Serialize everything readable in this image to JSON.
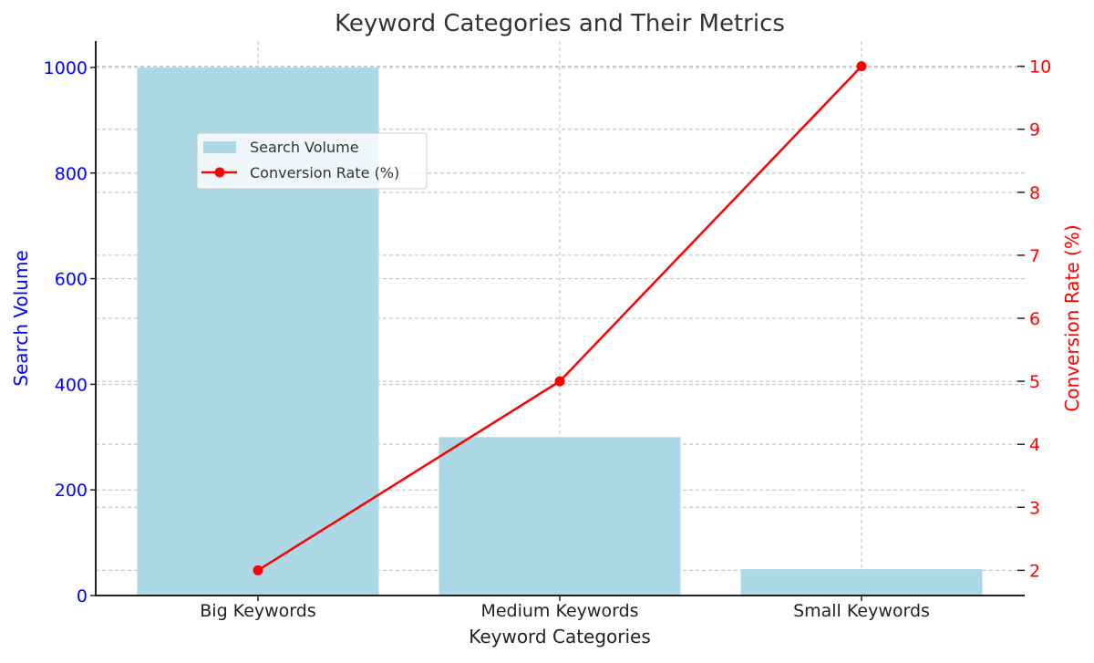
{
  "chart_data": {
    "type": "bar",
    "title": "Keyword Categories and Their Metrics",
    "xlabel": "Keyword Categories",
    "ylabel": "Search Volume",
    "y2label": "Conversion Rate (%)",
    "categories": [
      "Big Keywords",
      "Medium Keywords",
      "Small Keywords"
    ],
    "series": [
      {
        "name": "Search Volume",
        "type": "bar",
        "axis": "left",
        "color": "#add8e6",
        "values": [
          1000,
          300,
          50
        ]
      },
      {
        "name": "Conversion Rate (%)",
        "type": "line",
        "axis": "right",
        "color": "#ff0000",
        "marker": "circle",
        "values": [
          2,
          5,
          10
        ]
      }
    ],
    "ylim": [
      0,
      1050
    ],
    "y2lim": [
      1.6,
      10.4
    ],
    "yticks": [
      0,
      200,
      400,
      600,
      800,
      1000
    ],
    "y2ticks": [
      2,
      3,
      4,
      5,
      6,
      7,
      8,
      9,
      10
    ],
    "ytick_color": "#0000ff",
    "y2tick_color": "#ff0000",
    "grid": true,
    "legend_position": "upper left (inset)"
  },
  "title": "Keyword Categories and Their Metrics",
  "xlabel": "Keyword Categories",
  "ylabel": "Search Volume",
  "y2label": "Conversion Rate (%)",
  "legend": {
    "bar_label": "Search Volume",
    "line_label": "Conversion Rate (%)"
  }
}
